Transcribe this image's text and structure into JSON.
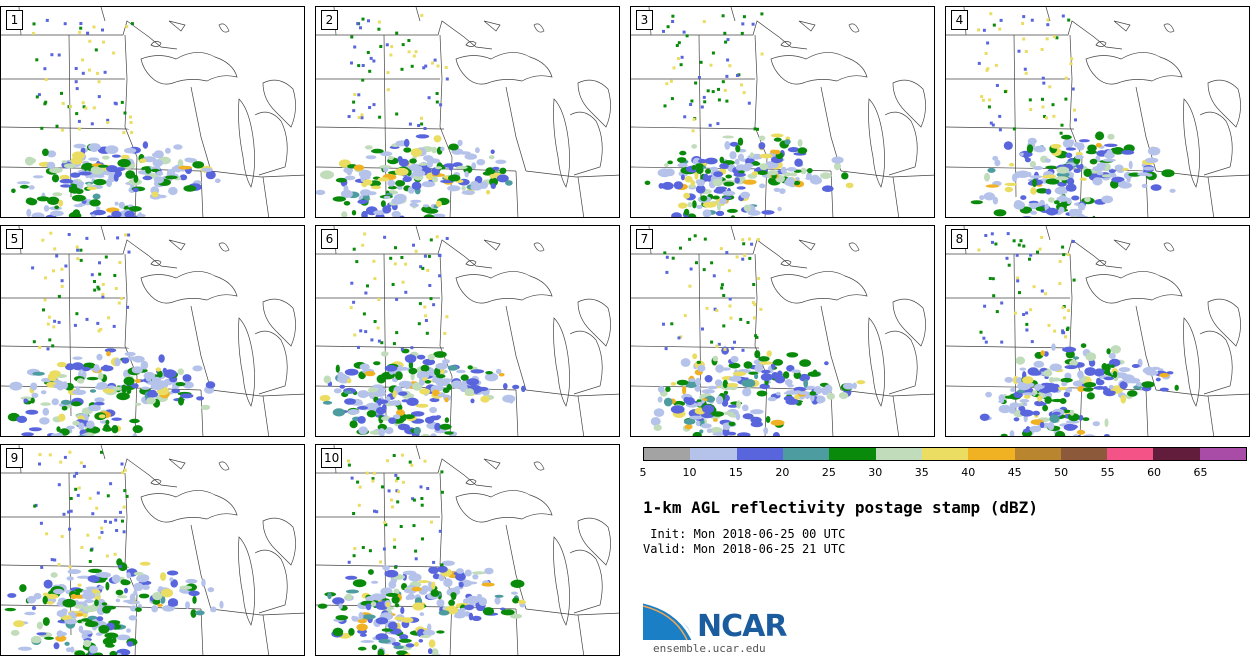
{
  "members": [
    {
      "label": "1"
    },
    {
      "label": "2"
    },
    {
      "label": "3"
    },
    {
      "label": "4"
    },
    {
      "label": "5"
    },
    {
      "label": "6"
    },
    {
      "label": "7"
    },
    {
      "label": "8"
    },
    {
      "label": "9"
    },
    {
      "label": "10"
    }
  ],
  "colorbar": {
    "ticks": [
      "5",
      "10",
      "15",
      "20",
      "25",
      "30",
      "35",
      "40",
      "45",
      "50",
      "55",
      "60",
      "65"
    ],
    "colors": [
      "#a3a3a3",
      "#b5c2ea",
      "#5865dc",
      "#4d9da0",
      "#0a8a0a",
      "#c0dcbb",
      "#eadd62",
      "#f0b123",
      "#b9862f",
      "#8c5a3b",
      "#f35386",
      "#621c3c",
      "#a94ca8"
    ]
  },
  "title": "1-km AGL reflectivity postage stamp (dBZ)",
  "init_line": " Init: Mon 2018-06-25 00 UTC",
  "valid_line": "Valid: Mon 2018-06-25 21 UTC",
  "logo": {
    "text": "NCAR",
    "brand_color": "#1a5c9e"
  },
  "site": "ensemble.ucar.edu"
}
